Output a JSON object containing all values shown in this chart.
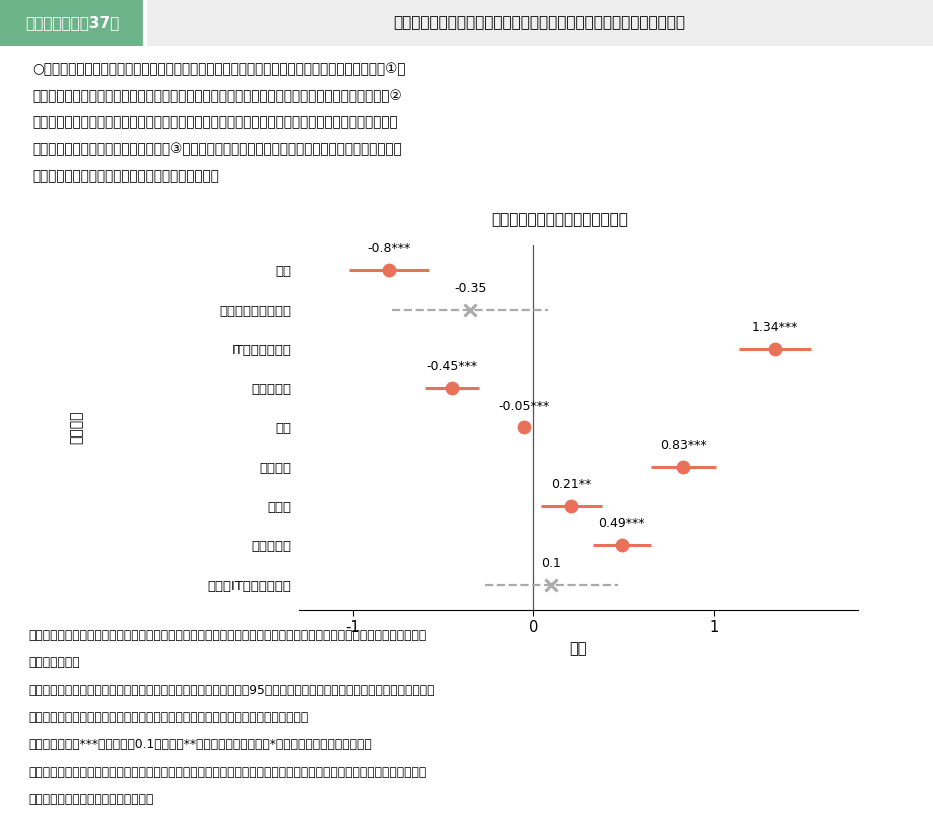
{
  "title_header": "第２－（４）－37図",
  "title_main": "ＩＴ専門訓練の受講と情報技術者になる確率の関係についての回帰分析",
  "chart_title": "被説明変数：情報技術者への就職",
  "xlabel": "係数",
  "ylabel": "説明変数",
  "body_line1": "○　再就職した者が情報技術者になる確率について、ロジスティック回帰分析を行ったところ、①女",
  "body_line2": "　性は男性と比較して訓練分野にかかわらず情報技術者に就職する確率が低い傾向があるものの、②",
  "body_line3": "　ＩＴの専門訓練を受講した場合は、非ＩＴ分野の訓練を受講した場合と比較して情報技術者への就",
  "body_line4": "　職確率は有意に高まっており、かつ③女性ダミーとＩＴ専門訓練受講の交差項が有意ではないこと",
  "body_line5": "　から、その効果には性別による有意な差は無い。",
  "src_line1": "資料出所　厚生労働省行政記録情報（雇用保険・職業紹介・職業訓練）をもとに厚生労働省政策統括官付政策統括室にて",
  "src_line2": "　　　　　作成",
  "note_line1": "　（注）　１）図中の数値は説明変数の係数、直線の横幅は係数の95％信頼区間を示す。赤線（実線）は５％水準で統計",
  "note_line2": "　　　　　　的に有意であり、灰色線（破線）は５％水準で有意でないことを示す。",
  "note_line3": "　　　　　２）***は有意水準0.1％未満、**は有意水準１％未満、*は有意水準５％未満を示す。",
  "note_line4": "　　　　　３）図に示しているもののほか、前職の産業や職業等を説明変数として用いている。詳細な回帰分析の結果は",
  "note_line5": "　　　　　　厚生労働省ＨＰを参照。",
  "variables": [
    "女性",
    "情報ビジネス科受講",
    "IT専門訓練受講",
    "訓練非受講",
    "年齢",
    "大卒以上",
    "短大卒",
    "専門学校卒",
    "女性：IT専門訓練受講"
  ],
  "coefs": [
    -0.8,
    -0.35,
    1.34,
    -0.45,
    -0.05,
    0.83,
    0.21,
    0.49,
    0.1
  ],
  "ci_low": [
    -1.02,
    -0.78,
    1.14,
    -0.6,
    -0.08,
    0.65,
    0.04,
    0.33,
    -0.27
  ],
  "ci_high": [
    -0.58,
    0.08,
    1.54,
    -0.3,
    -0.02,
    1.01,
    0.38,
    0.65,
    0.47
  ],
  "significant": [
    true,
    false,
    true,
    true,
    true,
    true,
    true,
    true,
    false
  ],
  "labels": [
    "-0.8***",
    "-0.35",
    "1.34***",
    "-0.45***",
    "-0.05***",
    "0.83***",
    "0.21**",
    "0.49***",
    "0.1"
  ],
  "color_sig": "#E8715A",
  "color_nonsig": "#AAAAAA",
  "xlim": [
    -1.3,
    1.8
  ],
  "xticks": [
    -1,
    0,
    1
  ],
  "xtick_labels": [
    "-1",
    "0",
    "1"
  ],
  "header_bg": "#7FB069",
  "header_divider": "#888888"
}
